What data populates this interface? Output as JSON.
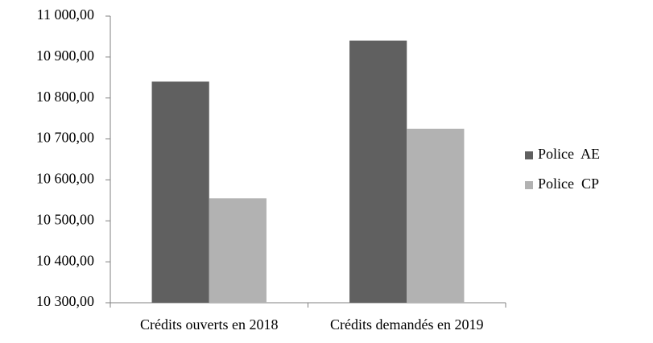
{
  "chart_data": {
    "type": "bar",
    "categories": [
      "Crédits ouverts en 2018",
      "Crédits demandés en 2019"
    ],
    "series": [
      {
        "name": "Police  AE",
        "color": "#606060",
        "values": [
          10840,
          10940
        ]
      },
      {
        "name": "Police  CP",
        "color": "#b2b2b2",
        "values": [
          10555,
          10725
        ]
      }
    ],
    "ylim": [
      10300,
      11000
    ],
    "yticks": [
      {
        "value": 10300,
        "label": "10 300,00"
      },
      {
        "value": 10400,
        "label": "10 400,00"
      },
      {
        "value": 10500,
        "label": "10 500,00"
      },
      {
        "value": 10600,
        "label": "10 600,00"
      },
      {
        "value": 10700,
        "label": "10 700,00"
      },
      {
        "value": 10800,
        "label": "10 800,00"
      },
      {
        "value": 10900,
        "label": "10 900,00"
      },
      {
        "value": 11000,
        "label": "11 000,00"
      }
    ],
    "grid": false,
    "legend": "right"
  }
}
